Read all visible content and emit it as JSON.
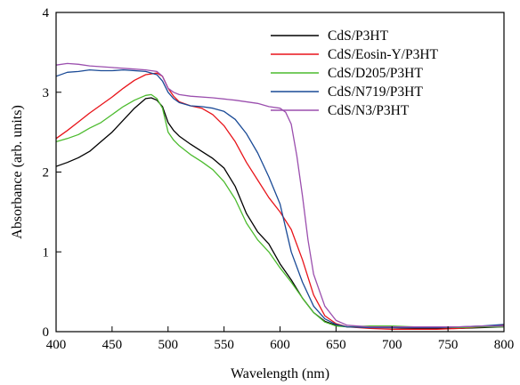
{
  "chart_data": {
    "type": "line",
    "title": "",
    "xlabel": "Wavelength (nm)",
    "ylabel": "Absorbance (arb. units)",
    "xlim": [
      400,
      800
    ],
    "ylim": [
      0,
      4
    ],
    "xticks": [
      400,
      450,
      500,
      550,
      600,
      650,
      700,
      750,
      800
    ],
    "yticks": [
      0,
      1,
      2,
      3,
      4
    ],
    "grid": false,
    "legend_position": "top-right",
    "series": [
      {
        "name": "CdS/P3HT",
        "color": "#000000",
        "points": [
          [
            400,
            2.07
          ],
          [
            410,
            2.12
          ],
          [
            420,
            2.18
          ],
          [
            430,
            2.26
          ],
          [
            440,
            2.38
          ],
          [
            450,
            2.5
          ],
          [
            460,
            2.65
          ],
          [
            470,
            2.8
          ],
          [
            480,
            2.92
          ],
          [
            485,
            2.93
          ],
          [
            490,
            2.9
          ],
          [
            495,
            2.82
          ],
          [
            500,
            2.62
          ],
          [
            505,
            2.52
          ],
          [
            510,
            2.45
          ],
          [
            520,
            2.35
          ],
          [
            530,
            2.26
          ],
          [
            540,
            2.17
          ],
          [
            550,
            2.05
          ],
          [
            560,
            1.82
          ],
          [
            570,
            1.48
          ],
          [
            580,
            1.25
          ],
          [
            590,
            1.1
          ],
          [
            600,
            0.85
          ],
          [
            610,
            0.65
          ],
          [
            620,
            0.42
          ],
          [
            630,
            0.24
          ],
          [
            640,
            0.13
          ],
          [
            650,
            0.08
          ],
          [
            660,
            0.06
          ],
          [
            680,
            0.05
          ],
          [
            700,
            0.05
          ],
          [
            720,
            0.04
          ],
          [
            740,
            0.04
          ],
          [
            760,
            0.04
          ],
          [
            780,
            0.05
          ],
          [
            800,
            0.06
          ]
        ]
      },
      {
        "name": "CdS/Eosin-Y/P3HT",
        "color": "#e8141a",
        "points": [
          [
            400,
            2.42
          ],
          [
            410,
            2.52
          ],
          [
            420,
            2.63
          ],
          [
            430,
            2.74
          ],
          [
            440,
            2.84
          ],
          [
            450,
            2.94
          ],
          [
            460,
            3.05
          ],
          [
            470,
            3.15
          ],
          [
            480,
            3.22
          ],
          [
            490,
            3.24
          ],
          [
            495,
            3.2
          ],
          [
            500,
            3.05
          ],
          [
            505,
            2.95
          ],
          [
            510,
            2.88
          ],
          [
            520,
            2.83
          ],
          [
            530,
            2.8
          ],
          [
            540,
            2.72
          ],
          [
            550,
            2.58
          ],
          [
            560,
            2.38
          ],
          [
            570,
            2.12
          ],
          [
            580,
            1.9
          ],
          [
            590,
            1.68
          ],
          [
            600,
            1.5
          ],
          [
            610,
            1.28
          ],
          [
            620,
            0.9
          ],
          [
            630,
            0.46
          ],
          [
            640,
            0.2
          ],
          [
            650,
            0.1
          ],
          [
            660,
            0.06
          ],
          [
            680,
            0.04
          ],
          [
            700,
            0.03
          ],
          [
            720,
            0.03
          ],
          [
            740,
            0.03
          ],
          [
            760,
            0.04
          ],
          [
            780,
            0.06
          ],
          [
            800,
            0.08
          ]
        ]
      },
      {
        "name": "CdS/D205/P3HT",
        "color": "#4cbb2e",
        "points": [
          [
            400,
            2.38
          ],
          [
            410,
            2.42
          ],
          [
            420,
            2.47
          ],
          [
            430,
            2.55
          ],
          [
            440,
            2.62
          ],
          [
            450,
            2.72
          ],
          [
            460,
            2.82
          ],
          [
            470,
            2.9
          ],
          [
            480,
            2.96
          ],
          [
            485,
            2.97
          ],
          [
            490,
            2.92
          ],
          [
            495,
            2.8
          ],
          [
            500,
            2.5
          ],
          [
            505,
            2.4
          ],
          [
            510,
            2.33
          ],
          [
            520,
            2.22
          ],
          [
            530,
            2.13
          ],
          [
            540,
            2.03
          ],
          [
            550,
            1.88
          ],
          [
            560,
            1.66
          ],
          [
            570,
            1.36
          ],
          [
            580,
            1.15
          ],
          [
            590,
            1.0
          ],
          [
            600,
            0.8
          ],
          [
            610,
            0.62
          ],
          [
            620,
            0.42
          ],
          [
            630,
            0.24
          ],
          [
            640,
            0.12
          ],
          [
            650,
            0.07
          ],
          [
            660,
            0.06
          ],
          [
            680,
            0.07
          ],
          [
            700,
            0.07
          ],
          [
            720,
            0.06
          ],
          [
            740,
            0.06
          ],
          [
            760,
            0.05
          ],
          [
            780,
            0.06
          ],
          [
            800,
            0.06
          ]
        ]
      },
      {
        "name": "CdS/N719/P3HT",
        "color": "#1a4a96",
        "points": [
          [
            400,
            3.2
          ],
          [
            410,
            3.25
          ],
          [
            420,
            3.26
          ],
          [
            430,
            3.28
          ],
          [
            440,
            3.27
          ],
          [
            450,
            3.27
          ],
          [
            460,
            3.28
          ],
          [
            470,
            3.27
          ],
          [
            480,
            3.26
          ],
          [
            490,
            3.22
          ],
          [
            495,
            3.14
          ],
          [
            500,
            3.0
          ],
          [
            505,
            2.92
          ],
          [
            510,
            2.87
          ],
          [
            520,
            2.83
          ],
          [
            530,
            2.82
          ],
          [
            540,
            2.8
          ],
          [
            550,
            2.76
          ],
          [
            560,
            2.66
          ],
          [
            570,
            2.48
          ],
          [
            580,
            2.24
          ],
          [
            590,
            1.94
          ],
          [
            600,
            1.6
          ],
          [
            605,
            1.3
          ],
          [
            610,
            1.0
          ],
          [
            620,
            0.62
          ],
          [
            630,
            0.32
          ],
          [
            640,
            0.16
          ],
          [
            650,
            0.09
          ],
          [
            660,
            0.06
          ],
          [
            680,
            0.05
          ],
          [
            700,
            0.05
          ],
          [
            720,
            0.05
          ],
          [
            740,
            0.05
          ],
          [
            760,
            0.06
          ],
          [
            780,
            0.07
          ],
          [
            800,
            0.09
          ]
        ]
      },
      {
        "name": "CdS/N3/P3HT",
        "color": "#9b4fae",
        "points": [
          [
            400,
            3.34
          ],
          [
            410,
            3.36
          ],
          [
            420,
            3.35
          ],
          [
            430,
            3.33
          ],
          [
            440,
            3.32
          ],
          [
            450,
            3.31
          ],
          [
            460,
            3.3
          ],
          [
            470,
            3.29
          ],
          [
            480,
            3.28
          ],
          [
            490,
            3.26
          ],
          [
            495,
            3.2
          ],
          [
            500,
            3.05
          ],
          [
            505,
            3.0
          ],
          [
            510,
            2.97
          ],
          [
            520,
            2.95
          ],
          [
            540,
            2.93
          ],
          [
            560,
            2.9
          ],
          [
            580,
            2.86
          ],
          [
            590,
            2.82
          ],
          [
            600,
            2.8
          ],
          [
            605,
            2.75
          ],
          [
            610,
            2.6
          ],
          [
            615,
            2.2
          ],
          [
            620,
            1.7
          ],
          [
            625,
            1.15
          ],
          [
            630,
            0.72
          ],
          [
            640,
            0.32
          ],
          [
            650,
            0.14
          ],
          [
            660,
            0.08
          ],
          [
            680,
            0.06
          ],
          [
            700,
            0.06
          ],
          [
            720,
            0.06
          ],
          [
            740,
            0.06
          ],
          [
            760,
            0.06
          ],
          [
            780,
            0.07
          ],
          [
            800,
            0.07
          ]
        ]
      }
    ]
  }
}
